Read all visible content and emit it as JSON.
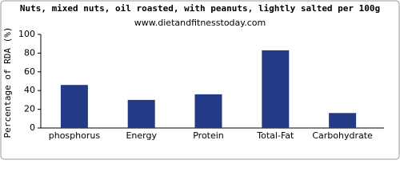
{
  "chart_data": {
    "type": "bar",
    "title": "Nuts, mixed nuts, oil roasted, with peanuts, lightly salted per 100g",
    "subtitle": "www.dietandfitnesstoday.com",
    "y_label": "Percentage of RDA (%)",
    "categories": [
      "phosphorus",
      "Energy",
      "Protein",
      "Total-Fat",
      "Carbohydrate"
    ],
    "values": [
      46,
      30,
      36,
      83,
      16
    ],
    "color": "#233b87",
    "ylim": [
      0,
      100
    ],
    "yticks": [
      0,
      20,
      40,
      60,
      80,
      100
    ],
    "grid": false
  }
}
